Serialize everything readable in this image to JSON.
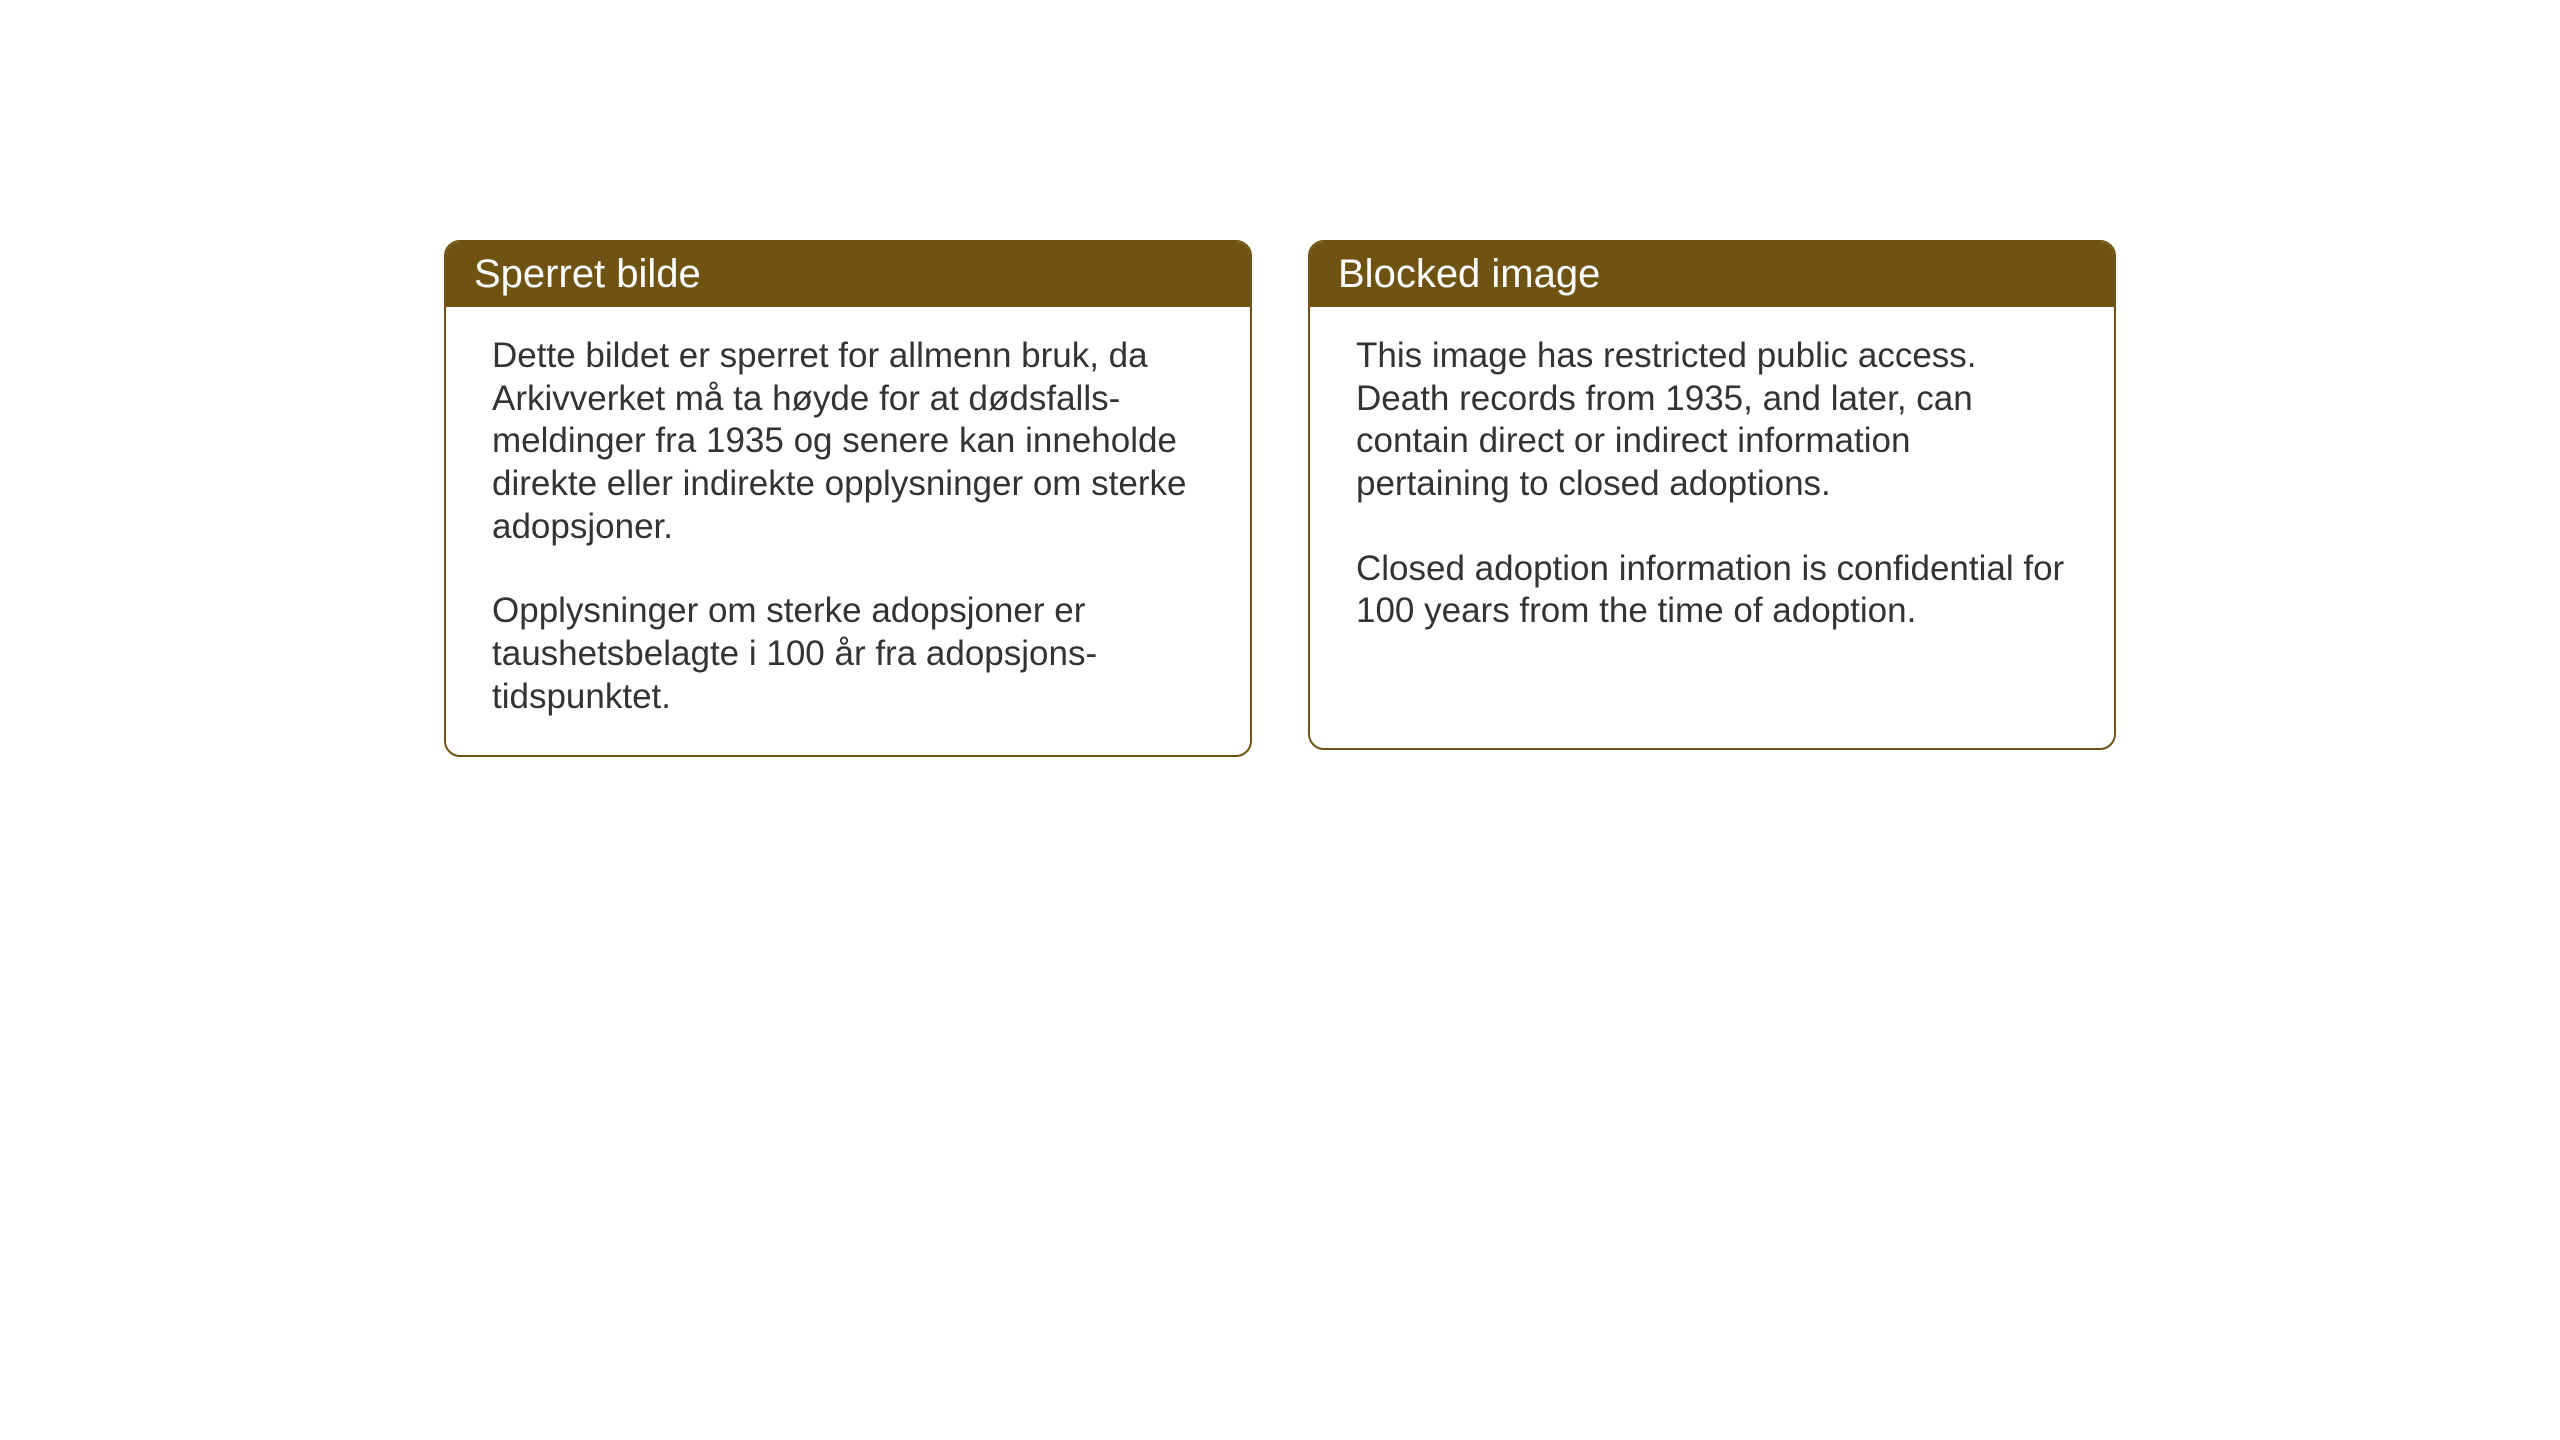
{
  "cards": {
    "norwegian": {
      "title": "Sperret bilde",
      "paragraph1": "Dette bildet er sperret for allmenn bruk, da Arkivverket må ta høyde for at dødsfalls-meldinger fra 1935 og senere kan inneholde direkte eller indirekte opplysninger om sterke adopsjoner.",
      "paragraph2": "Opplysninger om sterke adopsjoner er taushetsbelagte i 100 år fra adopsjons-tidspunktet."
    },
    "english": {
      "title": "Blocked image",
      "paragraph1": "This image has restricted public access. Death records from 1935, and later, can contain direct or indirect information pertaining to closed adoptions.",
      "paragraph2": "Closed adoption information is confidential for 100 years from the time of adoption."
    }
  },
  "styling": {
    "header_background": "#6e5313",
    "header_text_color": "#ffffff",
    "border_color": "#6e5313",
    "body_text_color": "#333333",
    "page_background": "#ffffff",
    "border_radius": 16,
    "border_width": 2,
    "header_fontsize": 40,
    "body_fontsize": 35
  }
}
